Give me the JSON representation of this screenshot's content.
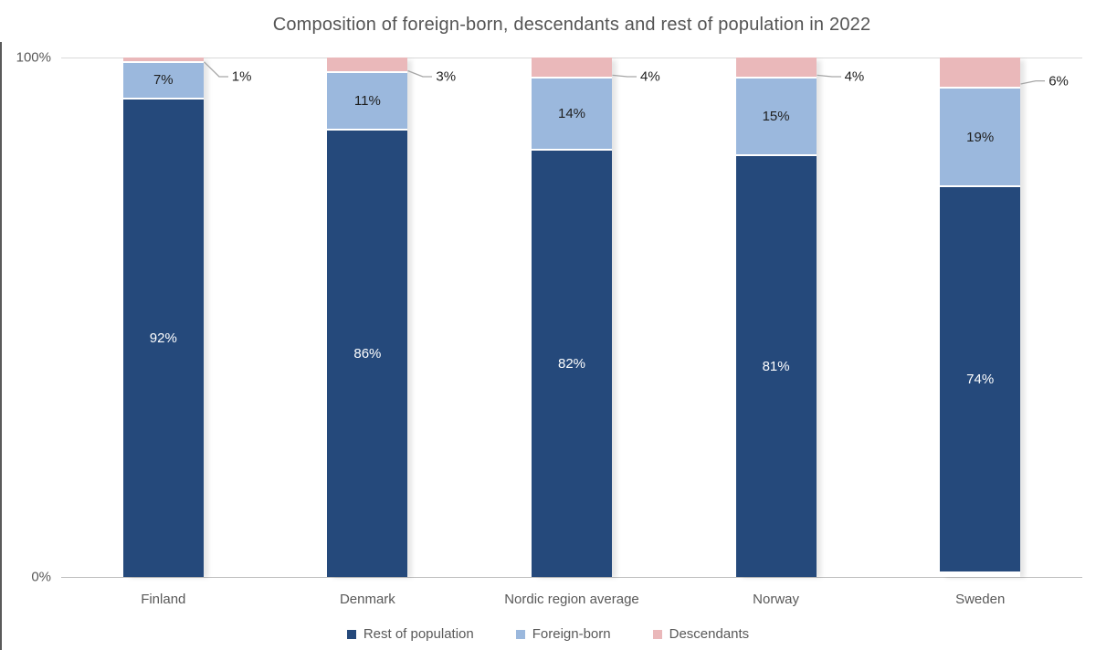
{
  "title": "Composition of foreign-born, descendants and rest of population in 2022",
  "axes": {
    "y_top_label": "100%",
    "y_bottom_label": "0%"
  },
  "colors": {
    "rest_of_population": "#25497B",
    "foreign_born": "#9BB8DD",
    "descendants": "#EAB8BA",
    "gridline": "#d9d9d9",
    "axis_line": "#bfbfbf",
    "callout_line": "#a6a6a6",
    "title_text": "#545454",
    "axis_text": "#595959"
  },
  "chart_data": {
    "type": "bar",
    "stacked": true,
    "title": "Composition of foreign-born, descendants and rest of population in 2022",
    "categories": [
      "Finland",
      "Denmark",
      "Nordic region average",
      "Norway",
      "Sweden"
    ],
    "series": [
      {
        "name": "Rest of population",
        "color": "#25497B",
        "values": [
          92,
          86,
          82,
          81,
          74
        ],
        "label_placement": "inside",
        "label_color": "#ffffff"
      },
      {
        "name": "Foreign-born",
        "color": "#9BB8DD",
        "values": [
          7,
          11,
          14,
          15,
          19
        ],
        "label_placement": "inside",
        "label_color": "#1f1f1f"
      },
      {
        "name": "Descendants",
        "color": "#EAB8BA",
        "values": [
          1,
          3,
          4,
          4,
          6
        ],
        "label_placement": "callout",
        "label_color": "#1f1f1f"
      }
    ],
    "xlabel": "",
    "ylabel": "",
    "ylim": [
      0,
      100
    ],
    "yticks": [
      "0%",
      "100%"
    ],
    "grid": "top-line-only",
    "legend_position": "bottom",
    "value_label_format": "{v}%"
  },
  "legend": {
    "items": [
      "Rest of population",
      "Foreign-born",
      "Descendants"
    ]
  }
}
